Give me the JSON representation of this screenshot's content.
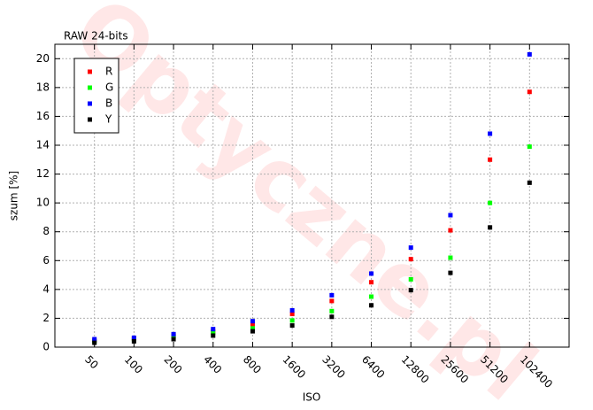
{
  "chart_data": {
    "type": "scatter",
    "title": "RAW 24-bits",
    "watermark": "Optyczne.pl",
    "x_label": "ISO",
    "y_label": "szum [%]",
    "categories": [
      "50",
      "100",
      "200",
      "400",
      "800",
      "1600",
      "3200",
      "6400",
      "12800",
      "25600",
      "51200",
      "102400"
    ],
    "series": [
      {
        "name": "R",
        "color": "#ff0000",
        "values": [
          0.45,
          0.6,
          0.8,
          1.1,
          1.6,
          2.3,
          3.2,
          4.5,
          6.1,
          8.1,
          13.0,
          17.7
        ]
      },
      {
        "name": "G",
        "color": "#00ff00",
        "values": [
          0.4,
          0.55,
          0.75,
          1.0,
          1.3,
          1.85,
          2.5,
          3.5,
          4.7,
          6.2,
          10.0,
          13.9
        ]
      },
      {
        "name": "B",
        "color": "#0000ff",
        "values": [
          0.55,
          0.65,
          0.9,
          1.25,
          1.8,
          2.55,
          3.6,
          5.1,
          6.9,
          9.15,
          14.8,
          20.3
        ]
      },
      {
        "name": "Y",
        "color": "#000000",
        "values": [
          0.3,
          0.4,
          0.55,
          0.8,
          1.1,
          1.5,
          2.1,
          2.9,
          3.95,
          5.15,
          8.3,
          11.4
        ]
      }
    ],
    "ylim": [
      0,
      21
    ],
    "yticks": [
      0,
      2,
      4,
      6,
      8,
      10,
      12,
      14,
      16,
      18,
      20
    ],
    "grid": true,
    "legend": "top-left"
  }
}
